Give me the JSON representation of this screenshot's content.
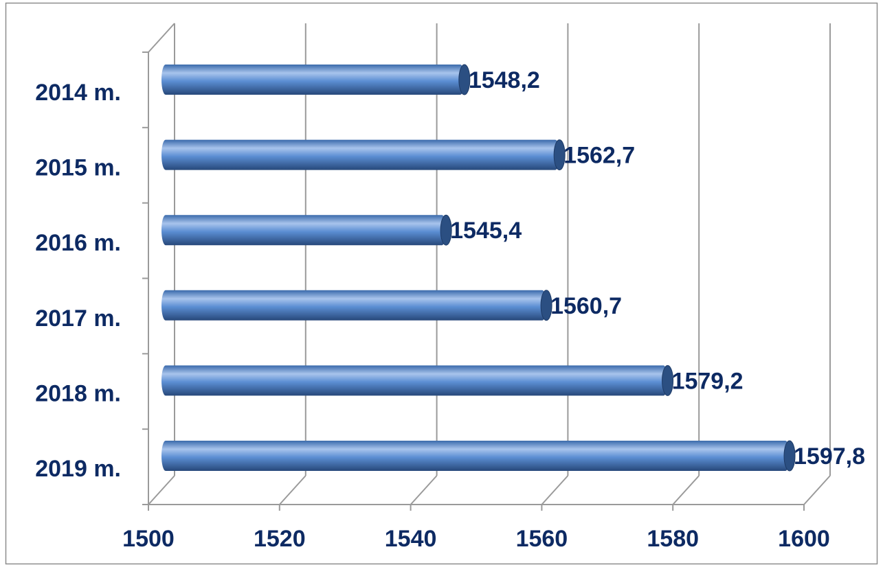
{
  "chart_data": {
    "type": "bar",
    "orientation": "horizontal",
    "style": "3d-cylinder",
    "categories": [
      "2014 m.",
      "2015 m.",
      "2016 m.",
      "2017 m.",
      "2018 m.",
      "2019 m."
    ],
    "values": [
      1548.2,
      1562.7,
      1545.4,
      1560.7,
      1579.2,
      1597.8
    ],
    "data_labels": [
      "1548,2",
      "1562,7",
      "1545,4",
      "1560,7",
      "1579,2",
      "1597,8"
    ],
    "xlim": [
      1500,
      1600
    ],
    "x_ticks": [
      1500,
      1520,
      1540,
      1560,
      1580,
      1600
    ],
    "x_tick_labels": [
      "1500",
      "1520",
      "1540",
      "1560",
      "1580",
      "1600"
    ],
    "grid": true,
    "legend": "none",
    "colors": {
      "bar": "#4f81bd",
      "bar_highlight": "#a8c4ec",
      "bar_shadow": "#2c5288",
      "bar_end": "#2b4f82",
      "text": "#0d2a63",
      "grid": "#9a9a9a",
      "frame": "#8c8c8c"
    }
  }
}
